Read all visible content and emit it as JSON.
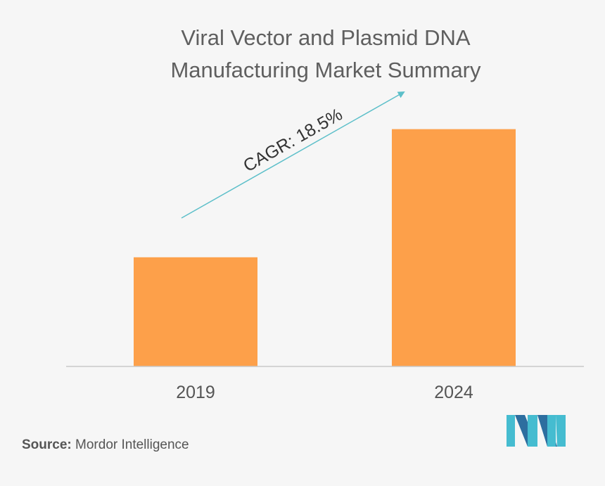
{
  "chart_data": {
    "type": "bar",
    "title": [
      "Viral Vector and Plasmid DNA",
      "Manufacturing Market Summary"
    ],
    "categories": [
      "2019",
      "2024"
    ],
    "values": [
      0.46,
      1.0
    ],
    "value_note": "relative heights; chart has no value axis",
    "ylim": [
      0,
      1.07
    ],
    "xlabel": "",
    "ylabel": "",
    "grid": false,
    "bar_color": "#fda04a",
    "annotation": {
      "text": "CAGR: 18.5%",
      "arrow_color": "#5cbfc9"
    }
  },
  "source": {
    "label": "Source:",
    "text": "Mordor Intelligence"
  },
  "logo": {
    "name": "mordor-intelligence-logo",
    "colors": [
      "#45bcd0",
      "#2d6e9f"
    ]
  },
  "colors": {
    "background": "#f6f6f6",
    "axis": "#c8c8c8",
    "title": "#5f5f5f"
  }
}
